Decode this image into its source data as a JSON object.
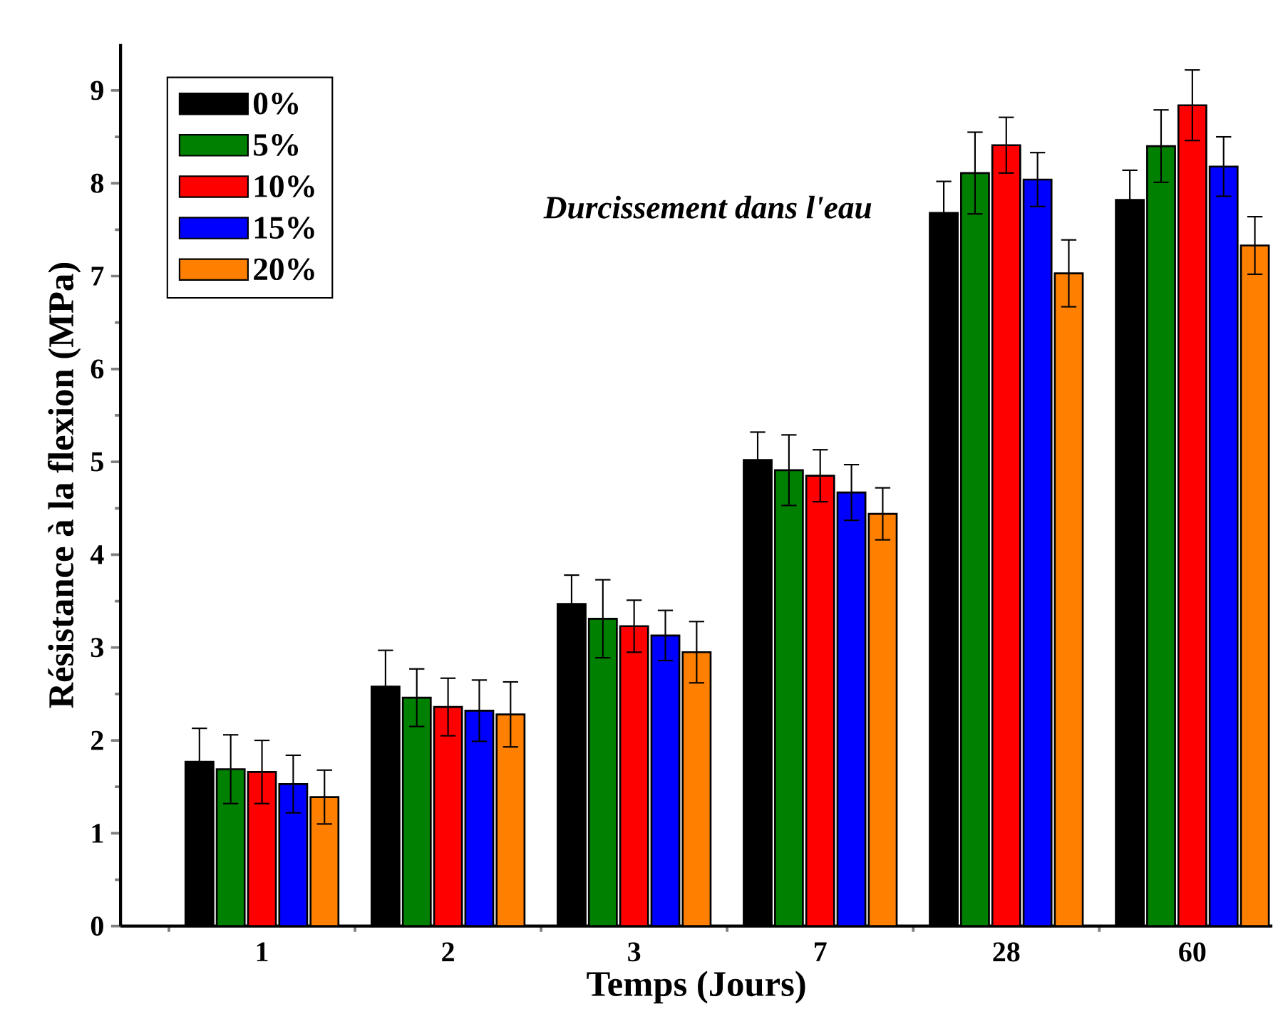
{
  "chart_data": {
    "type": "bar",
    "xlabel": "Temps (Jours)",
    "ylabel": "Résistance à la flexion (MPa)",
    "annotations": [
      "*Durcissement dans l'eau*"
    ],
    "categories": [
      "1",
      "2",
      "3",
      "7",
      "28",
      "60"
    ],
    "series": [
      {
        "name": "0%",
        "color": "#000000",
        "values": [
          1.77,
          2.58,
          3.47,
          5.02,
          7.68,
          7.82
        ],
        "errors": [
          0.36,
          0.39,
          0.31,
          0.3,
          0.34,
          0.32
        ]
      },
      {
        "name": "5%",
        "color": "#008000",
        "values": [
          1.69,
          2.46,
          3.31,
          4.91,
          8.11,
          8.4
        ],
        "errors": [
          0.37,
          0.31,
          0.42,
          0.38,
          0.44,
          0.39
        ]
      },
      {
        "name": "10%",
        "color": "#ff0000",
        "values": [
          1.66,
          2.36,
          3.23,
          4.85,
          8.41,
          8.84
        ],
        "errors": [
          0.34,
          0.31,
          0.28,
          0.28,
          0.3,
          0.38
        ]
      },
      {
        "name": "15%",
        "color": "#0000ff",
        "values": [
          1.53,
          2.32,
          3.13,
          4.67,
          8.04,
          8.18
        ],
        "errors": [
          0.31,
          0.33,
          0.27,
          0.3,
          0.29,
          0.32
        ]
      },
      {
        "name": "20%",
        "color": "#ff8000",
        "values": [
          1.39,
          2.28,
          2.95,
          4.44,
          7.03,
          7.33
        ],
        "errors": [
          0.29,
          0.35,
          0.33,
          0.28,
          0.36,
          0.31
        ]
      }
    ],
    "ylim": [
      0,
      9.5
    ],
    "yticks": [
      0,
      1,
      2,
      3,
      4,
      5,
      6,
      7,
      8,
      9
    ],
    "legend": "top left",
    "grid": false
  }
}
